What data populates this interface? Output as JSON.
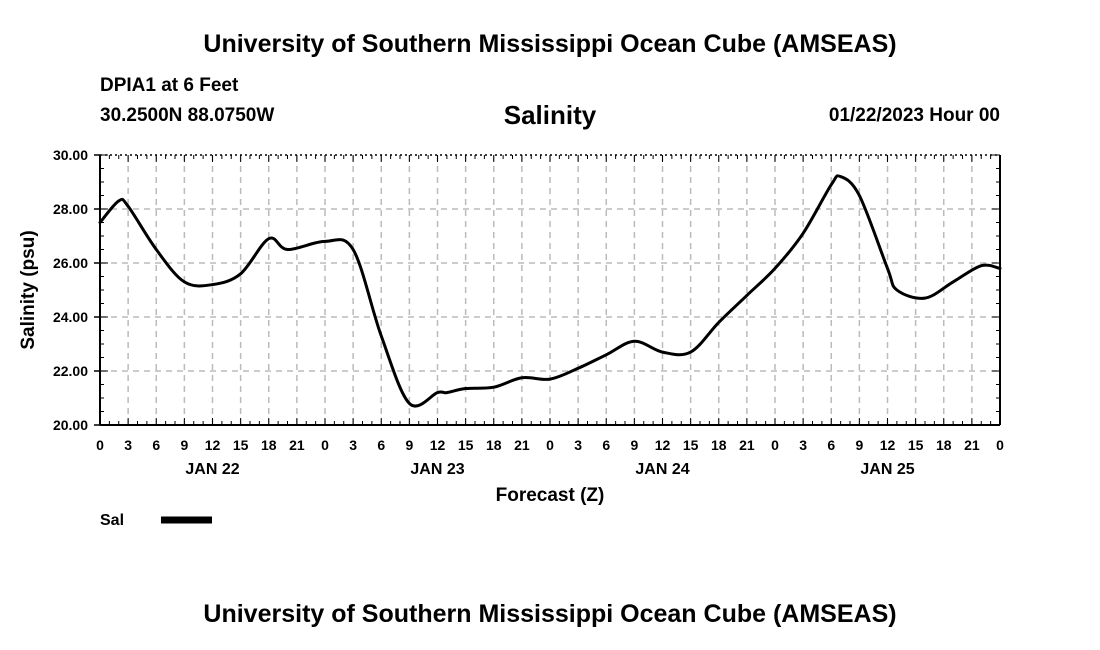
{
  "header": {
    "title": "University of Southern Mississippi Ocean Cube (AMSEAS)",
    "footer_title": "University of Southern Mississippi Ocean Cube (AMSEAS)",
    "station": "DPIA1 at 6 Feet",
    "coords": "30.2500N  88.0750W",
    "variable": "Salinity",
    "datetime": "01/22/2023 Hour 00"
  },
  "chart_data": {
    "type": "line",
    "title": "Salinity",
    "xlabel": "Forecast (Z)",
    "ylabel": "Salinity (psu)",
    "ylim": [
      20,
      30
    ],
    "xlim": [
      0,
      96
    ],
    "y_ticks": [
      "20.00",
      "22.00",
      "24.00",
      "26.00",
      "28.00",
      "30.00"
    ],
    "x_tick_labels": [
      "0",
      "3",
      "6",
      "9",
      "12",
      "15",
      "18",
      "21",
      "0",
      "3",
      "6",
      "9",
      "12",
      "15",
      "18",
      "21",
      "0",
      "3",
      "6",
      "9",
      "12",
      "15",
      "18",
      "21",
      "0",
      "3",
      "6",
      "9",
      "12",
      "15",
      "18",
      "21",
      "0"
    ],
    "day_labels": [
      {
        "label": "JAN 22",
        "hour": 12
      },
      {
        "label": "JAN 23",
        "hour": 36
      },
      {
        "label": "JAN 24",
        "hour": 60
      },
      {
        "label": "JAN 25",
        "hour": 84
      }
    ],
    "grid": true,
    "legend": {
      "position": "bottom-left",
      "label": "Sal",
      "color": "#000000"
    },
    "series": [
      {
        "name": "Sal",
        "x": [
          0,
          2,
          3,
          6,
          9,
          12,
          15,
          18,
          20,
          24,
          27,
          30,
          33,
          36,
          37,
          39,
          42,
          45,
          48,
          51,
          54,
          57,
          60,
          63,
          66,
          69,
          72,
          75,
          78,
          79,
          81,
          84,
          85,
          88,
          91,
          94,
          96
        ],
        "values": [
          27.5,
          28.3,
          28.1,
          26.5,
          25.3,
          25.2,
          25.6,
          26.9,
          26.5,
          26.8,
          26.5,
          23.3,
          20.8,
          21.2,
          21.2,
          21.35,
          21.4,
          21.75,
          21.7,
          22.1,
          22.6,
          23.1,
          22.7,
          22.7,
          23.8,
          24.8,
          25.8,
          27.1,
          28.9,
          29.2,
          28.5,
          25.8,
          25.0,
          24.7,
          25.3,
          25.9,
          25.8
        ]
      }
    ]
  },
  "colors": {
    "line": "#000000",
    "grid": "#bbbbbb",
    "background": "#ffffff"
  }
}
